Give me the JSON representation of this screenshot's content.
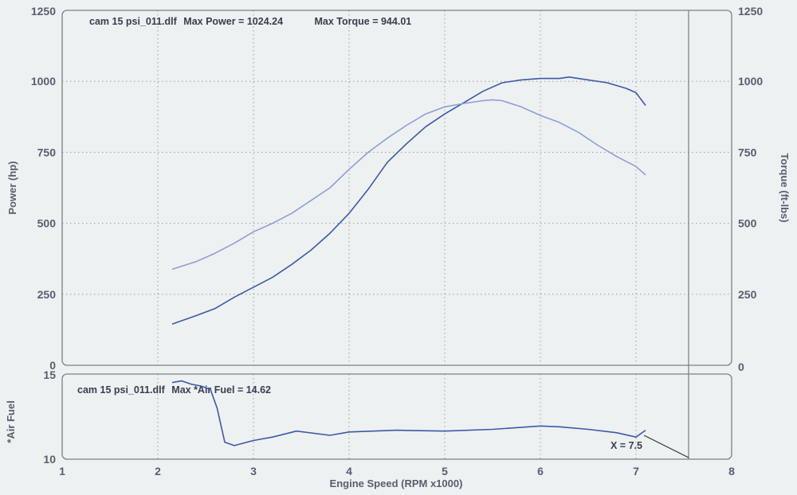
{
  "chart_data": [
    {
      "type": "line",
      "title": "",
      "header_file": "cam 15 psi_011.dlf",
      "header_power_label": "Max Power = ",
      "header_power_value": "1024.24",
      "header_torque_label": "Max Torque = ",
      "header_torque_value": "944.01",
      "xlabel": "Engine Speed (RPM x1000)",
      "ylabel": "Power (hp)",
      "ylabel_right": "Torque (ft-lbs)",
      "xlim": [
        1,
        8
      ],
      "ylim": [
        0,
        1250
      ],
      "x_ticks": [
        "1",
        "2",
        "3",
        "4",
        "5",
        "6",
        "7",
        "8"
      ],
      "y_ticks": [
        "0",
        "250",
        "500",
        "750",
        "1000",
        "1250"
      ],
      "y_ticks_right": [
        "0",
        "250",
        "500",
        "750",
        "1000",
        "1250"
      ],
      "grid": true,
      "colors": {
        "power": "#3b5aa6",
        "torque": "#8c9ed6"
      },
      "series": [
        {
          "key": "power",
          "x": [
            2.15,
            2.4,
            2.6,
            2.8,
            3.0,
            3.2,
            3.4,
            3.6,
            3.8,
            4.0,
            4.2,
            4.4,
            4.6,
            4.8,
            5.0,
            5.2,
            5.4,
            5.6,
            5.8,
            6.0,
            6.2,
            6.3,
            6.5,
            6.7,
            6.9,
            7.0,
            7.1
          ],
          "y": [
            145,
            175,
            200,
            240,
            275,
            310,
            355,
            405,
            465,
            535,
            620,
            715,
            780,
            840,
            885,
            925,
            965,
            995,
            1005,
            1010,
            1010,
            1015,
            1005,
            995,
            975,
            960,
            915
          ]
        },
        {
          "key": "torque",
          "x": [
            2.15,
            2.4,
            2.6,
            2.8,
            3.0,
            3.2,
            3.4,
            3.6,
            3.8,
            4.0,
            4.2,
            4.4,
            4.6,
            4.8,
            5.0,
            5.2,
            5.4,
            5.5,
            5.6,
            5.8,
            6.0,
            6.2,
            6.4,
            6.6,
            6.8,
            7.0,
            7.1
          ],
          "y": [
            338,
            365,
            395,
            430,
            470,
            500,
            535,
            580,
            625,
            690,
            750,
            800,
            845,
            885,
            910,
            922,
            932,
            935,
            932,
            910,
            880,
            855,
            820,
            775,
            735,
            700,
            670
          ]
        }
      ]
    },
    {
      "type": "line",
      "title": "",
      "header_file": "cam 15 psi_011.dlf",
      "header_label": "Max *Air Fuel = ",
      "header_value": "14.62",
      "ylabel": "*Air Fuel",
      "xlim": [
        1,
        8
      ],
      "ylim": [
        10,
        15
      ],
      "y_ticks": [
        "10",
        "15"
      ],
      "grid": true,
      "cursor_label": "X = 7.5",
      "cursor_x": 7.55,
      "colors": {
        "afr": "#3b5aa6"
      },
      "series": [
        {
          "key": "afr",
          "x": [
            2.15,
            2.25,
            2.35,
            2.45,
            2.55,
            2.62,
            2.7,
            2.8,
            3.0,
            3.2,
            3.45,
            3.8,
            4.0,
            4.5,
            5.0,
            5.5,
            6.0,
            6.2,
            6.5,
            6.8,
            7.0,
            7.1
          ],
          "y": [
            14.5,
            14.6,
            14.4,
            14.3,
            14.1,
            13.0,
            11.0,
            10.8,
            11.1,
            11.3,
            11.65,
            11.4,
            11.6,
            11.7,
            11.65,
            11.75,
            11.95,
            11.9,
            11.75,
            11.55,
            11.3,
            11.7
          ]
        }
      ]
    }
  ]
}
